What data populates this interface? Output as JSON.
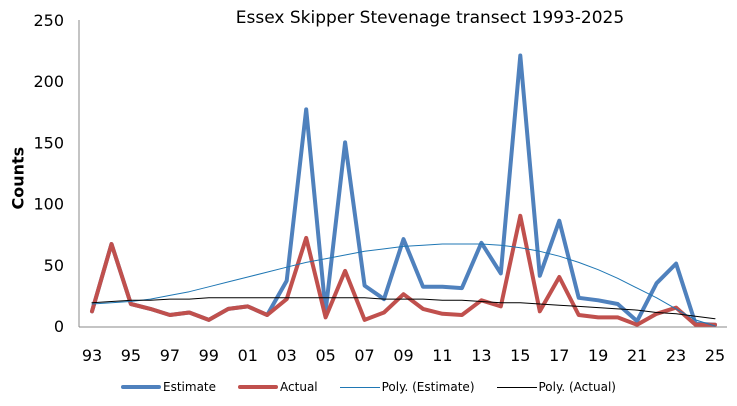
{
  "chart_data": {
    "type": "line",
    "title": "Essex Skipper Stevenage transect 1993-2025",
    "xlabel": "",
    "ylabel": "Counts",
    "ylim": [
      0,
      250
    ],
    "yticks": [
      0,
      50,
      100,
      150,
      200,
      250
    ],
    "xtick_labels": [
      "93",
      "95",
      "97",
      "99",
      "01",
      "03",
      "05",
      "07",
      "09",
      "11",
      "13",
      "15",
      "17",
      "19",
      "21",
      "23",
      "25"
    ],
    "x": [
      "93",
      "94",
      "95",
      "96",
      "97",
      "98",
      "99",
      "00",
      "01",
      "02",
      "03",
      "04",
      "05",
      "06",
      "07",
      "08",
      "09",
      "10",
      "11",
      "12",
      "13",
      "14",
      "15",
      "16",
      "17",
      "18",
      "19",
      "20",
      "21",
      "22",
      "23",
      "24",
      "25"
    ],
    "grid": false,
    "legend_position": "bottom",
    "series": [
      {
        "name": "Estimate",
        "color": "#4F81BD",
        "width": 4,
        "values": [
          12,
          67,
          18,
          14,
          9,
          11,
          5,
          14,
          16,
          9,
          37,
          177,
          12,
          150,
          33,
          22,
          71,
          32,
          32,
          31,
          68,
          43,
          221,
          41,
          86,
          23,
          21,
          18,
          4,
          35,
          51,
          2,
          1
        ]
      },
      {
        "name": "Actual",
        "color": "#C0504D",
        "width": 4,
        "values": [
          12,
          67,
          18,
          14,
          9,
          11,
          5,
          14,
          16,
          9,
          22,
          72,
          7,
          45,
          5,
          11,
          26,
          14,
          10,
          9,
          21,
          16,
          90,
          12,
          40,
          9,
          7,
          7,
          1,
          10,
          15,
          1,
          1
        ]
      },
      {
        "name": "Poly. (Estimate)",
        "color": "#1F77B4",
        "width": 1,
        "trendline": true,
        "values": [
          18,
          19,
          20,
          22,
          25,
          28,
          32,
          36,
          40,
          44,
          48,
          52,
          55,
          58,
          61,
          63,
          65,
          66,
          67,
          67,
          67,
          66,
          64,
          61,
          57,
          52,
          46,
          39,
          31,
          23,
          14,
          5,
          0
        ]
      },
      {
        "name": "Poly. (Actual)",
        "color": "#000000",
        "width": 1,
        "trendline": true,
        "values": [
          19,
          20,
          21,
          21,
          22,
          22,
          23,
          23,
          23,
          23,
          23,
          23,
          23,
          23,
          23,
          22,
          22,
          22,
          21,
          21,
          20,
          19,
          19,
          18,
          17,
          16,
          15,
          14,
          13,
          11,
          10,
          8,
          6
        ]
      }
    ]
  },
  "legend": [
    {
      "label": "Estimate",
      "color": "#4F81BD",
      "thick": true
    },
    {
      "label": "Actual",
      "color": "#C0504D",
      "thick": true
    },
    {
      "label": "Poly. (Estimate)",
      "color": "#1F77B4",
      "thick": false
    },
    {
      "label": "Poly. (Actual)",
      "color": "#000000",
      "thick": false
    }
  ]
}
